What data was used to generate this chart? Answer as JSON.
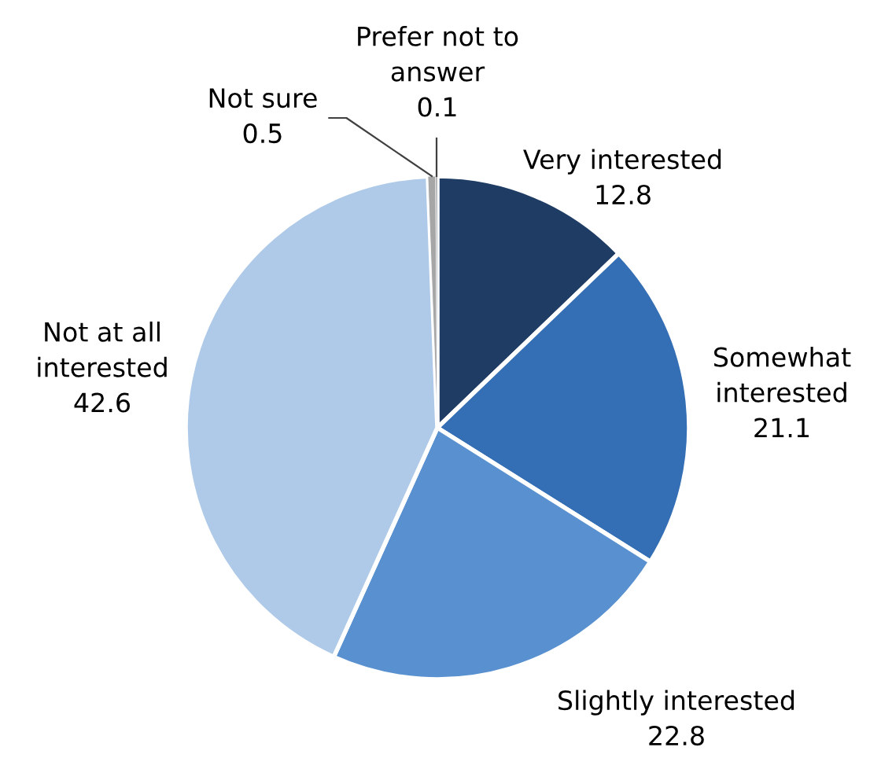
{
  "chart_data": {
    "type": "pie",
    "categories": [
      "Very interested",
      "Somewhat\ninterested",
      "Slightly interested",
      "Not at all\ninterested",
      "Not sure",
      "Prefer not to\nanswer"
    ],
    "values": [
      12.8,
      21.1,
      22.8,
      42.6,
      0.5,
      0.1
    ],
    "colors": [
      "#1e3c64",
      "#346eb4",
      "#5890d0",
      "#aecae8",
      "#a6a6a6",
      "#7f7f7f"
    ],
    "data_labels": true
  }
}
